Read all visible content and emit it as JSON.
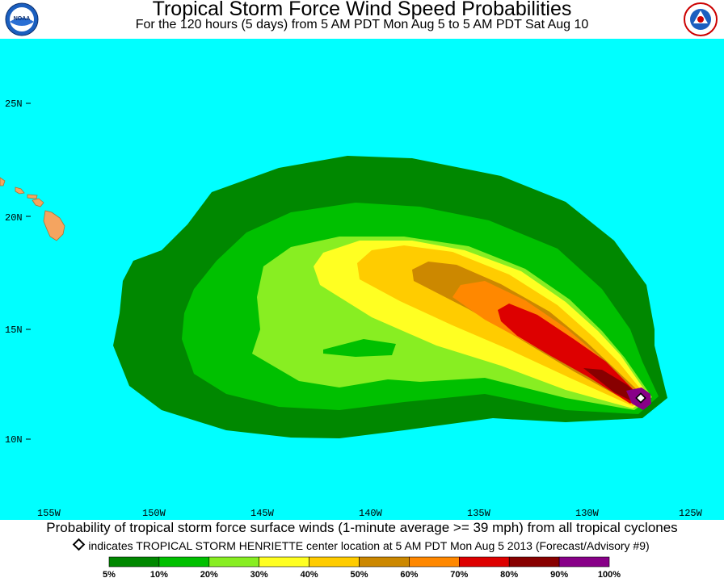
{
  "header": {
    "title": "Tropical Storm Force Wind Speed Probabilities",
    "subtitle": "For the 120 hours (5 days) from 5 AM PDT Mon Aug 5 to 5 AM PDT Sat Aug 10",
    "left_logo": "NOAA",
    "right_logo": "National Weather Service"
  },
  "map": {
    "ocean_color": "#00ffff",
    "land_color": "#f4a460",
    "lat_labels": [
      "25N",
      "20N",
      "15N",
      "10N"
    ],
    "lon_labels": [
      "155W",
      "150W",
      "145W",
      "140W",
      "135W",
      "130W",
      "125W"
    ],
    "storm_marker": "storm-center-diamond"
  },
  "footer": {
    "line1": "Probability of tropical storm force surface winds (1-minute average >= 39 mph) from all tropical cyclones",
    "line2": "indicates TROPICAL STORM HENRIETTE center location at 5 AM PDT Mon Aug 5 2013 (Forecast/Advisory #9)"
  },
  "legend": {
    "colors": [
      "#008800",
      "#00c000",
      "#88ee22",
      "#ffff22",
      "#ffcc00",
      "#cc8800",
      "#ff8800",
      "#dd0000",
      "#880000",
      "#880088"
    ],
    "labels": [
      "5%",
      "10%",
      "20%",
      "30%",
      "40%",
      "50%",
      "60%",
      "70%",
      "80%",
      "90%",
      "100%"
    ]
  }
}
